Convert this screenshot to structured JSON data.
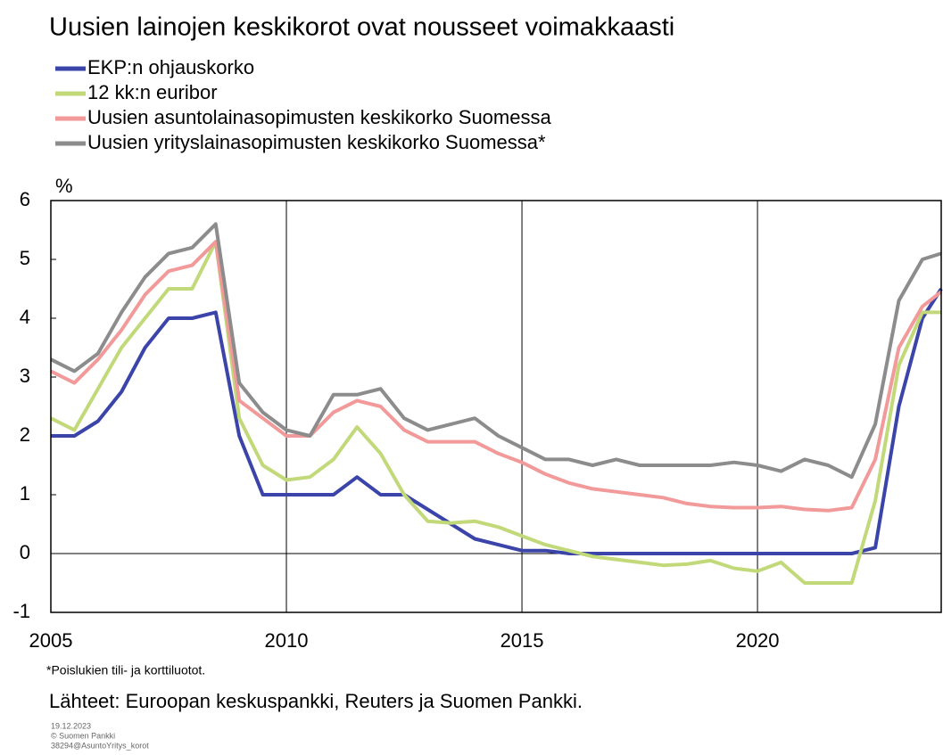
{
  "chart_data": {
    "type": "line",
    "title": "Uusien lainojen keskikorot ovat nousseet voimakkaasti",
    "y_label": "%",
    "footnote": "*Poislukien tili- ja korttiluotot.",
    "source": "Lähteet: Euroopan keskuspankki, Reuters ja Suomen Pankki.",
    "meta": [
      "19.12.2023",
      "© Suomen Pankki",
      "38294@AsuntoYritys_korot"
    ],
    "x": [
      2005,
      2005.5,
      2006,
      2006.5,
      2007,
      2007.5,
      2008,
      2008.5,
      2009,
      2009.5,
      2010,
      2010.5,
      2011,
      2011.5,
      2012,
      2012.5,
      2013,
      2013.5,
      2014,
      2014.5,
      2015,
      2015.5,
      2016,
      2016.5,
      2017,
      2017.5,
      2018,
      2018.5,
      2019,
      2019.5,
      2020,
      2020.5,
      2021,
      2021.5,
      2022,
      2022.5,
      2023,
      2023.5,
      2023.9
    ],
    "series": [
      {
        "name": "EKP:n ohjauskorko",
        "color": "#3b44a8",
        "values": [
          2,
          2,
          2.25,
          2.75,
          3.5,
          4,
          4,
          4.1,
          2.0,
          1,
          1,
          1,
          1,
          1.3,
          1.0,
          1.0,
          0.75,
          0.5,
          0.25,
          0.15,
          0.05,
          0.05,
          0,
          0,
          0,
          0,
          0,
          0,
          0,
          0,
          0,
          0,
          0,
          0,
          0,
          0.1,
          2.5,
          4,
          4.5
        ]
      },
      {
        "name": "12 kk:n euribor",
        "color": "#c2d97a",
        "values": [
          2.3,
          2.1,
          2.8,
          3.5,
          4.0,
          4.5,
          4.5,
          5.3,
          2.3,
          1.5,
          1.25,
          1.3,
          1.6,
          2.15,
          1.7,
          1.0,
          0.55,
          0.52,
          0.55,
          0.45,
          0.3,
          0.15,
          0.05,
          -0.05,
          -0.1,
          -0.15,
          -0.2,
          -0.18,
          -0.12,
          -0.25,
          -0.3,
          -0.15,
          -0.5,
          -0.5,
          -0.5,
          0.9,
          3.2,
          4.1,
          4.1
        ]
      },
      {
        "name": "Uusien asuntolainasopimusten keskikorko Suomessa",
        "color": "#f2999a",
        "values": [
          3.1,
          2.9,
          3.3,
          3.8,
          4.4,
          4.8,
          4.9,
          5.3,
          2.6,
          2.3,
          2.0,
          2.0,
          2.4,
          2.6,
          2.5,
          2.1,
          1.9,
          1.9,
          1.9,
          1.7,
          1.55,
          1.35,
          1.2,
          1.1,
          1.05,
          1.0,
          0.95,
          0.85,
          0.8,
          0.78,
          0.78,
          0.8,
          0.75,
          0.73,
          0.78,
          1.6,
          3.5,
          4.2,
          4.45
        ]
      },
      {
        "name": "Uusien yrityslainasopimusten keskikorko Suomessa*",
        "color": "#8c8c8c",
        "values": [
          3.3,
          3.1,
          3.4,
          4.1,
          4.7,
          5.1,
          5.2,
          5.6,
          2.9,
          2.4,
          2.1,
          2.0,
          2.7,
          2.7,
          2.8,
          2.3,
          2.1,
          2.2,
          2.3,
          2.0,
          1.8,
          1.6,
          1.6,
          1.5,
          1.6,
          1.5,
          1.5,
          1.5,
          1.5,
          1.55,
          1.5,
          1.4,
          1.6,
          1.5,
          1.3,
          2.2,
          4.3,
          5.0,
          5.1
        ]
      }
    ],
    "xlim": [
      2005,
      2023.9
    ],
    "xticks": [
      2005,
      2010,
      2015,
      2020
    ],
    "ylim": [
      -1,
      6
    ],
    "yticks": [
      -1,
      0,
      1,
      2,
      3,
      4,
      5,
      6
    ],
    "grid": true
  }
}
